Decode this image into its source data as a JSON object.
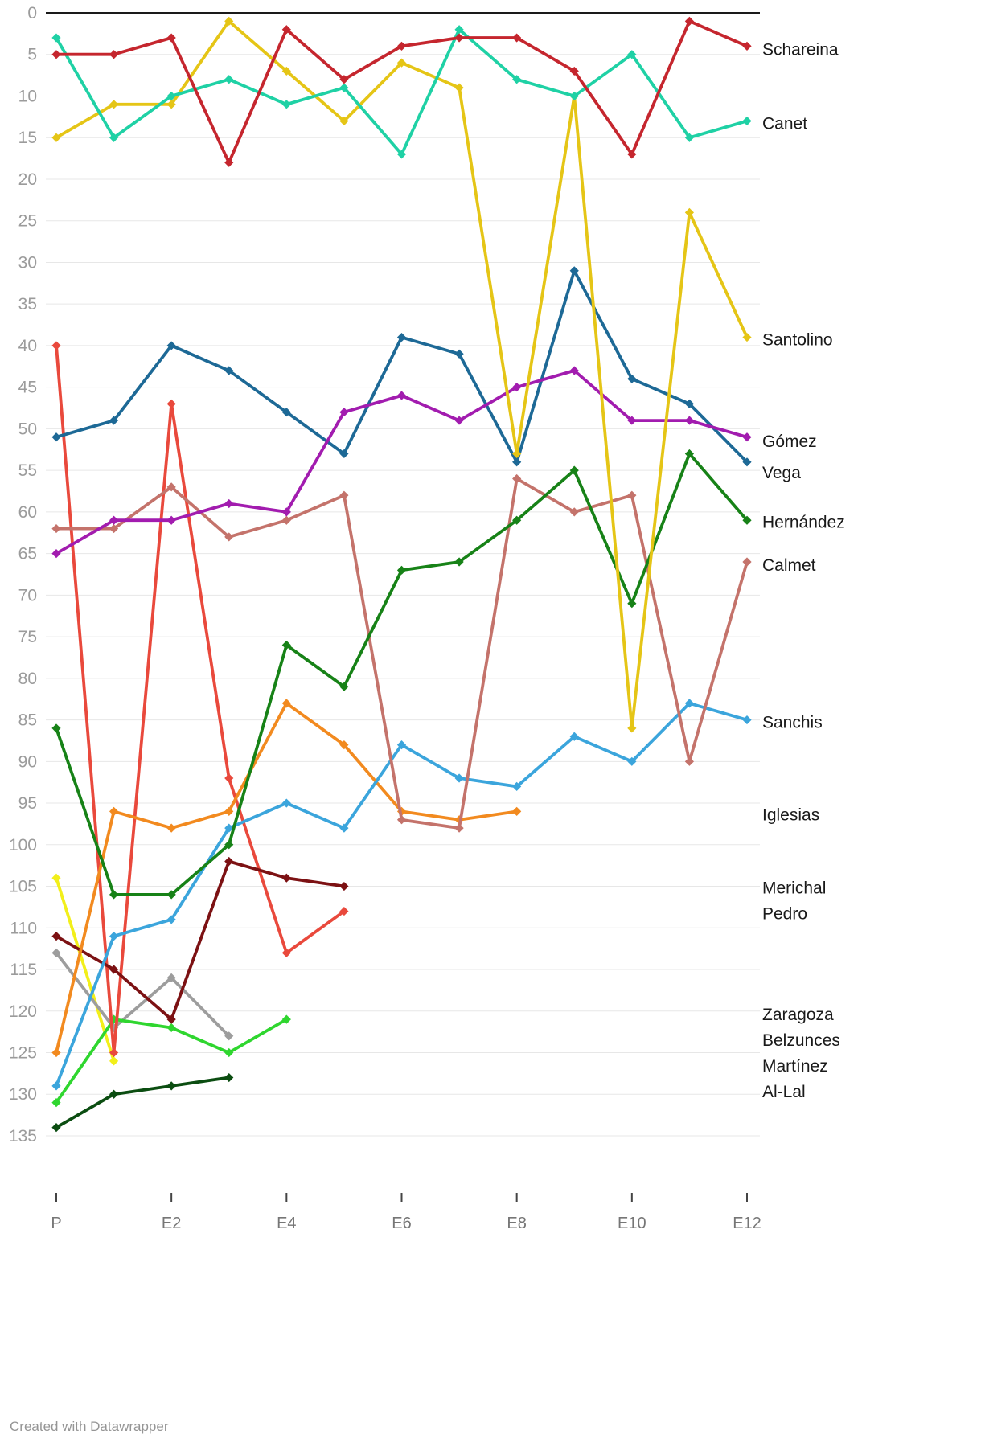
{
  "footer": {
    "credit": "Created with Datawrapper"
  },
  "chart_data": {
    "type": "line",
    "title": "",
    "xlabel": "",
    "ylabel": "",
    "x": [
      "P",
      "E1",
      "E2",
      "E3",
      "E4",
      "E5",
      "E6",
      "E7",
      "E8",
      "E9",
      "E10",
      "E11",
      "E12"
    ],
    "x_tick_labels": [
      "P",
      "E2",
      "E4",
      "E6",
      "E8",
      "E10",
      "E12"
    ],
    "x_tick_indices": [
      0,
      2,
      4,
      6,
      8,
      10,
      12
    ],
    "ylim": [
      0,
      135
    ],
    "y_tick_step": 5,
    "y_axis_inverted": true,
    "grid": true,
    "legend_position": "right",
    "marker": "diamond",
    "series": [
      {
        "name": "Schareina",
        "color": "#c5262e",
        "label_y": 4.4,
        "values": [
          5,
          5,
          3,
          18,
          2,
          8,
          4,
          3,
          3,
          7,
          17,
          1,
          4
        ]
      },
      {
        "name": "Canet",
        "color": "#1fd1a5",
        "label_y": 13.3,
        "values": [
          3,
          15,
          10,
          8,
          11,
          9,
          17,
          2,
          8,
          10,
          5,
          15,
          13
        ]
      },
      {
        "name": "Santolino",
        "color": "#e5c516",
        "label_y": 39.3,
        "values": [
          15,
          11,
          11,
          1,
          7,
          13,
          6,
          9,
          53,
          10,
          86,
          24,
          39
        ]
      },
      {
        "name": "Gómez",
        "color": "#a21caf",
        "label_y": 51.5,
        "values": [
          65,
          61,
          61,
          59,
          60,
          48,
          46,
          49,
          45,
          43,
          49,
          49,
          51
        ]
      },
      {
        "name": "Vega",
        "color": "#1d6996",
        "label_y": 55.3,
        "values": [
          51,
          49,
          40,
          43,
          48,
          53,
          39,
          41,
          54,
          31,
          44,
          47,
          54
        ]
      },
      {
        "name": "Hernández",
        "color": "#178217",
        "label_y": 61.2,
        "values": [
          86,
          106,
          106,
          100,
          76,
          81,
          67,
          66,
          61,
          55,
          71,
          53,
          61
        ]
      },
      {
        "name": "Calmet",
        "color": "#c4736b",
        "label_y": 66.4,
        "values": [
          62,
          62,
          57,
          63,
          61,
          58,
          97,
          98,
          56,
          60,
          58,
          90,
          66
        ]
      },
      {
        "name": "Sanchis",
        "color": "#3ba5dc",
        "label_y": 85.3,
        "values": [
          129,
          111,
          109,
          98,
          95,
          98,
          88,
          92,
          93,
          87,
          90,
          83,
          85
        ]
      },
      {
        "name": "Iglesias",
        "color": "#f28a1f",
        "label_y": 96.4,
        "values": [
          125,
          96,
          98,
          96,
          83,
          88,
          96,
          97,
          96,
          null,
          null,
          null,
          null
        ]
      },
      {
        "name": "Merichal",
        "color": "#7c1113",
        "label_y": 105.2,
        "values": [
          111,
          115,
          121,
          102,
          104,
          105,
          null,
          null,
          null,
          null,
          null,
          null,
          null
        ]
      },
      {
        "name": "Pedro",
        "color": "#e9493c",
        "label_y": 108.3,
        "values": [
          40,
          125,
          47,
          92,
          113,
          108,
          null,
          null,
          null,
          null,
          null,
          null,
          null
        ]
      },
      {
        "name": "Zaragoza",
        "color": "#2fd62f",
        "label_y": 120.4,
        "values": [
          131,
          121,
          122,
          125,
          121,
          null,
          null,
          null,
          null,
          null,
          null,
          null,
          null
        ]
      },
      {
        "name": "Belzunces",
        "color": "#9d9d9d",
        "label_y": 123.5,
        "values": [
          113,
          122,
          116,
          123,
          null,
          null,
          null,
          null,
          null,
          null,
          null,
          null,
          null
        ]
      },
      {
        "name": "Martínez",
        "color": "#f2ef1a",
        "label_y": 126.6,
        "values": [
          104,
          126,
          null,
          null,
          null,
          null,
          null,
          null,
          null,
          null,
          null,
          null,
          null
        ]
      },
      {
        "name": "Al-Lal",
        "color": "#0b4d11",
        "label_y": 129.7,
        "values": [
          134,
          130,
          129,
          128,
          null,
          null,
          null,
          null,
          null,
          null,
          null,
          null,
          null
        ]
      }
    ]
  }
}
